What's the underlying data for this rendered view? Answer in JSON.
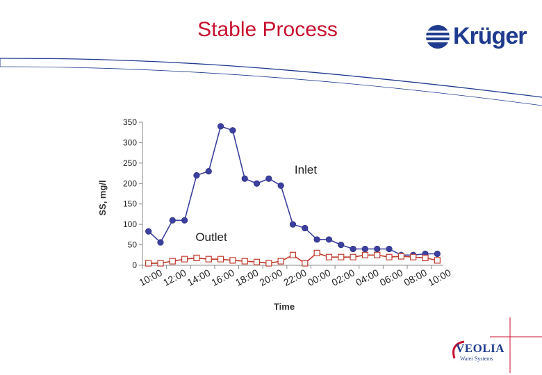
{
  "slide": {
    "title": "Stable Process"
  },
  "branding": {
    "logo_text": "Krüger",
    "logo_color": "#1f3b8f",
    "veolia_word": "VEOLIA",
    "veolia_sub": "Water Systems",
    "title_color": "#c8102e"
  },
  "chart_data": {
    "type": "line",
    "ylabel": "SS, mg/l",
    "xlabel": "Time",
    "ylim": [
      0,
      350
    ],
    "y_ticks": [
      0,
      50,
      100,
      150,
      200,
      250,
      300,
      350
    ],
    "x_tick_labels": [
      "10:00",
      "12:00",
      "14:00",
      "16:00",
      "18:00",
      "20:00",
      "22:00",
      "00:00",
      "02:00",
      "04:00",
      "06:00",
      "08:00",
      "10:00"
    ],
    "grid": false,
    "series": [
      {
        "name": "Inlet",
        "color": "#3b3f9e",
        "marker": "filled-circle",
        "x": [
          0,
          1,
          2,
          3,
          4,
          5,
          6,
          7,
          8,
          9,
          10,
          11,
          12,
          13,
          14,
          15,
          16,
          17,
          18,
          19,
          20,
          21,
          22,
          23,
          24
        ],
        "values": [
          83,
          56,
          110,
          110,
          220,
          230,
          340,
          330,
          212,
          200,
          212,
          195,
          100,
          91,
          63,
          63,
          50,
          40,
          40,
          40,
          40,
          25,
          25,
          28,
          28
        ]
      },
      {
        "name": "Outlet",
        "color": "#c0392b",
        "marker": "open-square",
        "x": [
          0,
          1,
          2,
          3,
          4,
          5,
          6,
          7,
          8,
          9,
          10,
          11,
          12,
          13,
          14,
          15,
          16,
          17,
          18,
          19,
          20,
          21,
          22,
          23,
          24
        ],
        "values": [
          5,
          5,
          10,
          15,
          18,
          15,
          15,
          12,
          10,
          8,
          5,
          10,
          25,
          5,
          30,
          20,
          20,
          20,
          25,
          25,
          20,
          22,
          20,
          18,
          12
        ]
      }
    ]
  }
}
